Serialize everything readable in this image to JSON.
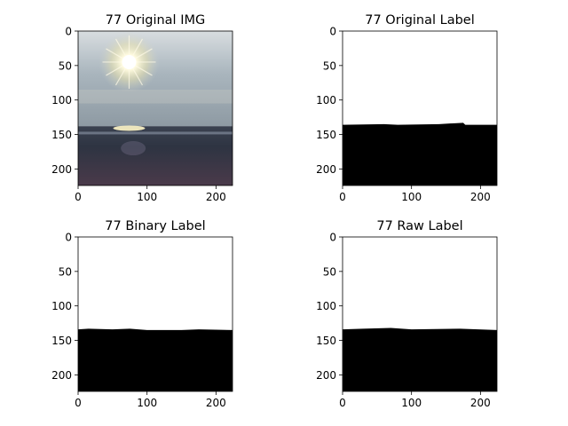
{
  "chart_data": [
    {
      "type": "image",
      "title": "77 Original IMG",
      "xlabel": "",
      "ylabel": "",
      "xlim": [
        0,
        224
      ],
      "ylim": [
        224,
        0
      ],
      "xticks": [
        0,
        100,
        200
      ],
      "yticks": [
        0,
        50,
        100,
        150,
        200
      ],
      "content": "photo of sun over sea; horizon at row ~138"
    },
    {
      "type": "image",
      "title": "77 Original Label",
      "xlabel": "",
      "ylabel": "",
      "xlim": [
        0,
        224
      ],
      "ylim": [
        224,
        0
      ],
      "xticks": [
        0,
        100,
        200
      ],
      "yticks": [
        0,
        50,
        100,
        150,
        200
      ],
      "sky_color": "#ffffff",
      "ground_color": "#000000",
      "boundary": [
        [
          0,
          136
        ],
        [
          60,
          135
        ],
        [
          80,
          136
        ],
        [
          140,
          135
        ],
        [
          175,
          133
        ],
        [
          178,
          136
        ],
        [
          224,
          136
        ]
      ]
    },
    {
      "type": "image",
      "title": "77 Binary Label",
      "xlabel": "",
      "ylabel": "",
      "xlim": [
        0,
        224
      ],
      "ylim": [
        224,
        0
      ],
      "xticks": [
        0,
        100,
        200
      ],
      "yticks": [
        0,
        50,
        100,
        150,
        200
      ],
      "sky_color": "#ffffff",
      "ground_color": "#000000",
      "boundary": [
        [
          0,
          134
        ],
        [
          15,
          133
        ],
        [
          50,
          134
        ],
        [
          75,
          133
        ],
        [
          100,
          135
        ],
        [
          150,
          135
        ],
        [
          175,
          134
        ],
        [
          224,
          135
        ]
      ]
    },
    {
      "type": "image",
      "title": "77 Raw Label",
      "xlabel": "",
      "ylabel": "",
      "xlim": [
        0,
        224
      ],
      "ylim": [
        224,
        0
      ],
      "xticks": [
        0,
        100,
        200
      ],
      "yticks": [
        0,
        50,
        100,
        150,
        200
      ],
      "sky_color": "#ffffff",
      "ground_color": "#000000",
      "boundary": [
        [
          0,
          134
        ],
        [
          30,
          133
        ],
        [
          70,
          132
        ],
        [
          100,
          134
        ],
        [
          170,
          133
        ],
        [
          224,
          135
        ]
      ]
    }
  ],
  "colors": {
    "sky_top": "#d8dde0",
    "sky_mid": "#a9b5bd",
    "sky_low": "#8e9aa3",
    "sea": "#2e3442",
    "sand": "#4a3a4a",
    "sun": "#fffbe0"
  }
}
